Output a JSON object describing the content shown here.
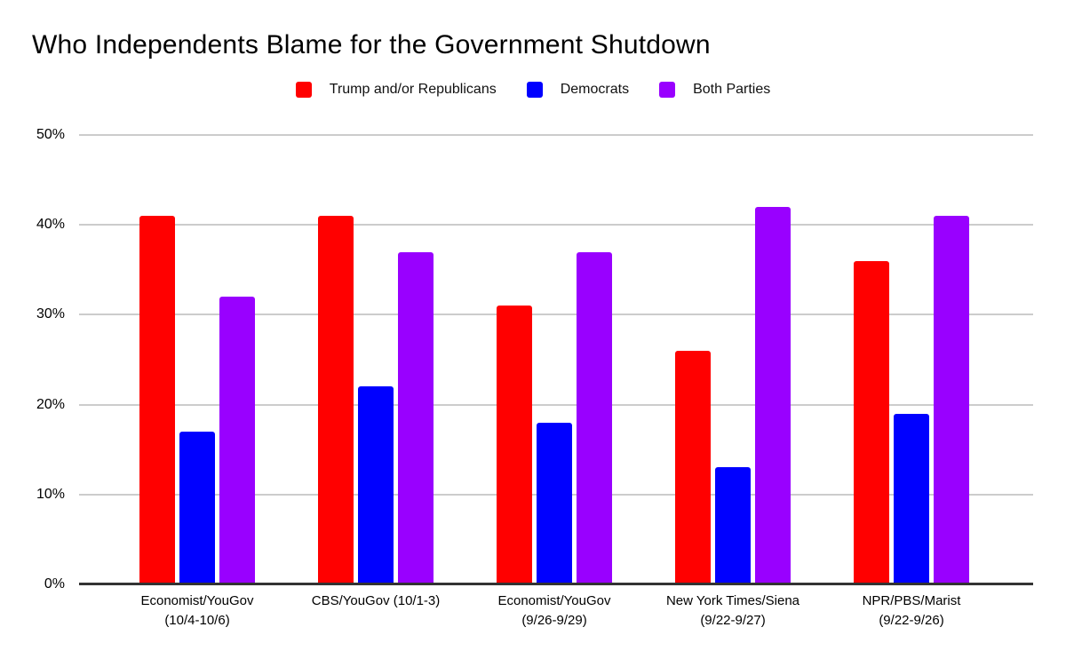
{
  "title": "Who Independents Blame for the Government Shutdown",
  "legend": {
    "items": [
      {
        "label": "Trump and/or Republicans",
        "color": "#ff0000"
      },
      {
        "label": "Democrats",
        "color": "#0000ff"
      },
      {
        "label": "Both Parties",
        "color": "#9900ff"
      }
    ]
  },
  "chart_data": {
    "type": "bar",
    "title": "Who Independents Blame for the Government Shutdown",
    "categories": [
      "Economist/YouGov\n(10/4-10/6)",
      "CBS/YouGov (10/1-3)",
      "Economist/YouGov\n(9/26-9/29)",
      "New York Times/Siena\n(9/22-9/27)",
      "NPR/PBS/Marist\n(9/22-9/26)"
    ],
    "series": [
      {
        "name": "Trump and/or Republicans",
        "color": "#ff0000",
        "values": [
          41,
          41,
          31,
          26,
          36
        ]
      },
      {
        "name": "Democrats",
        "color": "#0000ff",
        "values": [
          17,
          22,
          18,
          13,
          19
        ]
      },
      {
        "name": "Both Parties",
        "color": "#9900ff",
        "values": [
          32,
          37,
          37,
          42,
          41
        ]
      }
    ],
    "xlabel": "",
    "ylabel": "",
    "ylim": [
      0,
      50
    ],
    "yticks": [
      0,
      10,
      20,
      30,
      40,
      50
    ],
    "ytick_labels": [
      "0%",
      "10%",
      "20%",
      "30%",
      "40%",
      "50%"
    ],
    "grid": true,
    "legend_position": "top",
    "colors": {
      "background": "#ffffff",
      "gridline": "#cccccc",
      "axis_line": "#333333",
      "text": "#000000"
    }
  }
}
